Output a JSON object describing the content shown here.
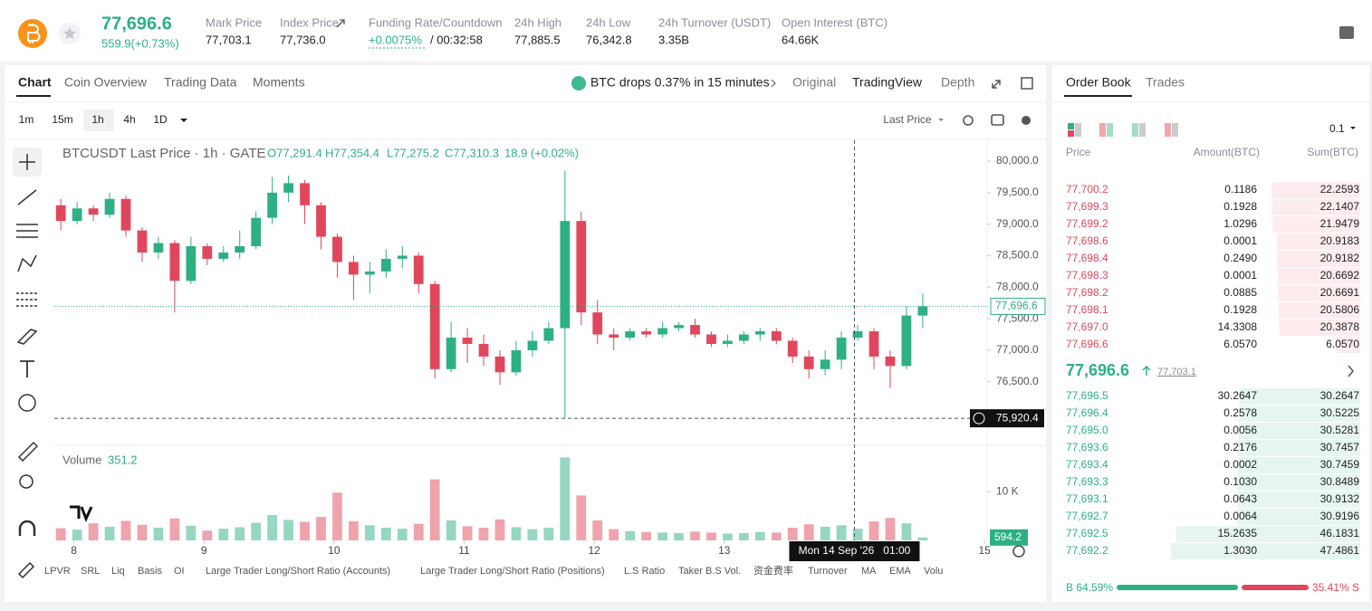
{
  "header": {
    "price": "77,696.6",
    "change": "559.9(+0.73%)",
    "stats": [
      {
        "label": "Mark Price",
        "value": "77,703.1"
      },
      {
        "label": "Index Price",
        "value": "77,736.0"
      },
      {
        "label": "Funding Rate/Countdown",
        "value": "+0.0075%",
        "extra": "/ 00:32:58"
      },
      {
        "label": "24h High",
        "value": "77,885.5"
      },
      {
        "label": "24h Low",
        "value": "76,342.8"
      },
      {
        "label": "24h Turnover (USDT)",
        "value": "3.35B"
      },
      {
        "label": "Open Interest (BTC)",
        "value": "64.66K"
      }
    ]
  },
  "chart_tabs": [
    "Chart",
    "Coin Overview",
    "Trading Data",
    "Moments"
  ],
  "news": "BTC drops 0.37% in 15 minutes",
  "view_tabs": [
    "Original",
    "TradingView",
    "Depth"
  ],
  "intervals": [
    "1m",
    "15m",
    "1h",
    "4h",
    "1D"
  ],
  "price_type": "Last Price",
  "indicators": [
    "LPVR",
    "SRL",
    "Liq",
    "Basis",
    "OI",
    "Large Trader Long/Short Ratio (Accounts)",
    "Large Trader Long/Short Ratio (Positions)",
    "L.S Ratio",
    "Taker B.S Vol.",
    "资金费率",
    "Turnover",
    "MA",
    "EMA",
    "Volu"
  ],
  "chart_data": {
    "type": "candlestick",
    "title": "BTCUSDT Last Price · 1h · GATE",
    "ohlc_legend": [
      "O77,291.4",
      "H77,354.4",
      "L77,275.2",
      "C77,310.3",
      "18.9 (+0.02%)"
    ],
    "up_color": "#2eb082",
    "down_color": "#e0475c",
    "x": [
      7.9,
      8.025,
      8.15,
      8.275,
      8.4,
      8.525,
      8.65,
      8.775,
      8.9,
      9.025,
      9.15,
      9.275,
      9.4,
      9.525,
      9.65,
      9.775,
      9.9,
      10.025,
      10.15,
      10.275,
      10.4,
      10.525,
      10.65,
      10.775,
      10.9,
      11.025,
      11.15,
      11.275,
      11.4,
      11.525,
      11.65,
      11.775,
      11.9,
      12.025,
      12.15,
      12.275,
      12.4,
      12.525,
      12.65,
      12.775,
      12.9,
      13.025,
      13.15,
      13.275,
      13.4,
      13.525,
      13.65,
      13.775,
      13.9,
      14.025,
      14.15,
      14.275,
      14.4,
      14.525
    ],
    "open": [
      79300,
      79050,
      79250,
      79150,
      79400,
      78900,
      78550,
      78700,
      78100,
      78650,
      78450,
      78550,
      78650,
      79100,
      79500,
      79650,
      79300,
      78800,
      78400,
      78200,
      78250,
      78450,
      78500,
      78050,
      76700,
      77200,
      77100,
      76900,
      76650,
      77000,
      77150,
      77350,
      79050,
      77600,
      77250,
      77200,
      77300,
      77250,
      77350,
      77400,
      77250,
      77100,
      77150,
      77250,
      77300,
      77150,
      76900,
      76700,
      76850,
      77200,
      77300,
      76900,
      76750,
      77550
    ],
    "high": [
      79400,
      79350,
      79300,
      79500,
      79450,
      78950,
      78800,
      78750,
      78800,
      78700,
      78650,
      78900,
      79200,
      79750,
      79770,
      79700,
      79350,
      78850,
      78500,
      78400,
      78600,
      78650,
      78550,
      78100,
      77450,
      77350,
      77250,
      77000,
      77150,
      77300,
      77450,
      79850,
      79200,
      77800,
      77350,
      77350,
      77350,
      77450,
      77450,
      77500,
      77300,
      77250,
      77300,
      77350,
      77350,
      77200,
      77000,
      77000,
      77300,
      77400,
      77350,
      77000,
      77700,
      77900
    ],
    "low": [
      78900,
      79000,
      79050,
      79100,
      78800,
      78400,
      78450,
      77600,
      78050,
      78350,
      78400,
      78450,
      78600,
      79000,
      79350,
      79000,
      78600,
      78150,
      77800,
      77900,
      78150,
      78300,
      77900,
      76550,
      76650,
      76800,
      76750,
      76450,
      76600,
      76900,
      77100,
      75920,
      77400,
      77100,
      77000,
      77150,
      77200,
      77200,
      77300,
      77200,
      77050,
      77050,
      77100,
      77150,
      77100,
      76800,
      76550,
      76600,
      76700,
      77150,
      76700,
      76400,
      76700,
      77350
    ],
    "close": [
      79050,
      79250,
      79150,
      79400,
      78900,
      78550,
      78700,
      78100,
      78650,
      78450,
      78550,
      78650,
      79100,
      79500,
      79650,
      79300,
      78800,
      78400,
      78200,
      78250,
      78450,
      78500,
      78050,
      76700,
      77200,
      77100,
      76900,
      76650,
      77000,
      77150,
      77350,
      79050,
      77600,
      77250,
      77200,
      77300,
      77250,
      77350,
      77400,
      77250,
      77100,
      77150,
      77250,
      77300,
      77150,
      76900,
      76700,
      76850,
      77200,
      77300,
      76900,
      76750,
      77550,
      77697
    ],
    "volume": [
      2500,
      2200,
      3500,
      2800,
      4000,
      3200,
      2600,
      4500,
      3000,
      2000,
      2400,
      2700,
      3600,
      5200,
      4200,
      3800,
      4800,
      9800,
      3900,
      3100,
      2600,
      2400,
      3400,
      12500,
      4100,
      2900,
      2600,
      4300,
      2700,
      2300,
      2600,
      17000,
      9200,
      4100,
      2300,
      1900,
      1700,
      1600,
      1500,
      1800,
      1600,
      1400,
      1500,
      1700,
      1600,
      2600,
      3300,
      2800,
      3100,
      2400,
      3900,
      4600,
      3500,
      594.2
    ],
    "xlim": [
      7.85,
      15.02
    ],
    "xticks": [
      8,
      9,
      10,
      11,
      12,
      13,
      15
    ],
    "ylim": [
      75520,
      80330
    ],
    "yticks": [
      {
        "value": 76500,
        "label": "76,500.0"
      },
      {
        "value": 77000,
        "label": "77,000.0"
      },
      {
        "value": 77500,
        "label": "77,500.0"
      },
      {
        "value": 78000,
        "label": "78,000.0"
      },
      {
        "value": 78500,
        "label": "78,500.0"
      },
      {
        "value": 79000,
        "label": "79,000.0"
      },
      {
        "value": 79500,
        "label": "79,500.0"
      },
      {
        "value": 80000,
        "label": "80,000.0"
      }
    ],
    "grid": false,
    "volume_title": "Volume",
    "volume_legend": "351.2",
    "volume_ylim": [
      0,
      18000
    ],
    "volume_yticks": [
      {
        "value": 10000,
        "label": "10 K"
      }
    ],
    "last_price": {
      "value": 77696.6,
      "label": "77,696.6"
    },
    "crosshair": {
      "value": 75920.4,
      "label": "75,920.4",
      "x": 14.0,
      "x_label": "Mon 14 Sep '26   01:00"
    }
  },
  "orderbook": {
    "tabs": [
      "Order Book",
      "Trades"
    ],
    "step": "0.1",
    "headers": [
      "Price",
      "Amount(BTC)",
      "Sum(BTC)"
    ],
    "asks": [
      [
        "77,700.2",
        "0.1186",
        "22.2593"
      ],
      [
        "77,699.3",
        "0.1928",
        "22.1407"
      ],
      [
        "77,699.2",
        "1.0296",
        "21.9479"
      ],
      [
        "77,698.6",
        "0.0001",
        "20.9183"
      ],
      [
        "77,698.4",
        "0.2490",
        "20.9182"
      ],
      [
        "77,698.3",
        "0.0001",
        "20.6692"
      ],
      [
        "77,698.2",
        "0.0885",
        "20.6691"
      ],
      [
        "77,698.1",
        "0.1928",
        "20.5806"
      ],
      [
        "77,697.0",
        "14.3308",
        "20.3878"
      ],
      [
        "77,696.6",
        "6.0570",
        "6.0570"
      ]
    ],
    "mid_price": "77,696.6",
    "mid_mark": "77,703.1",
    "bids": [
      [
        "77,696.5",
        "30.2647",
        "30.2647"
      ],
      [
        "77,696.4",
        "0.2578",
        "30.5225"
      ],
      [
        "77,695.0",
        "0.0056",
        "30.5281"
      ],
      [
        "77,693.6",
        "0.2176",
        "30.7457"
      ],
      [
        "77,693.4",
        "0.0002",
        "30.7459"
      ],
      [
        "77,693.3",
        "0.1030",
        "30.8489"
      ],
      [
        "77,693.1",
        "0.0643",
        "30.9132"
      ],
      [
        "77,692.7",
        "0.0064",
        "30.9196"
      ],
      [
        "77,692.5",
        "15.2635",
        "46.1831"
      ],
      [
        "77,692.2",
        "1.3030",
        "47.4861"
      ]
    ],
    "buy_ratio": "B 64.59%",
    "sell_ratio": "35.41% S"
  }
}
